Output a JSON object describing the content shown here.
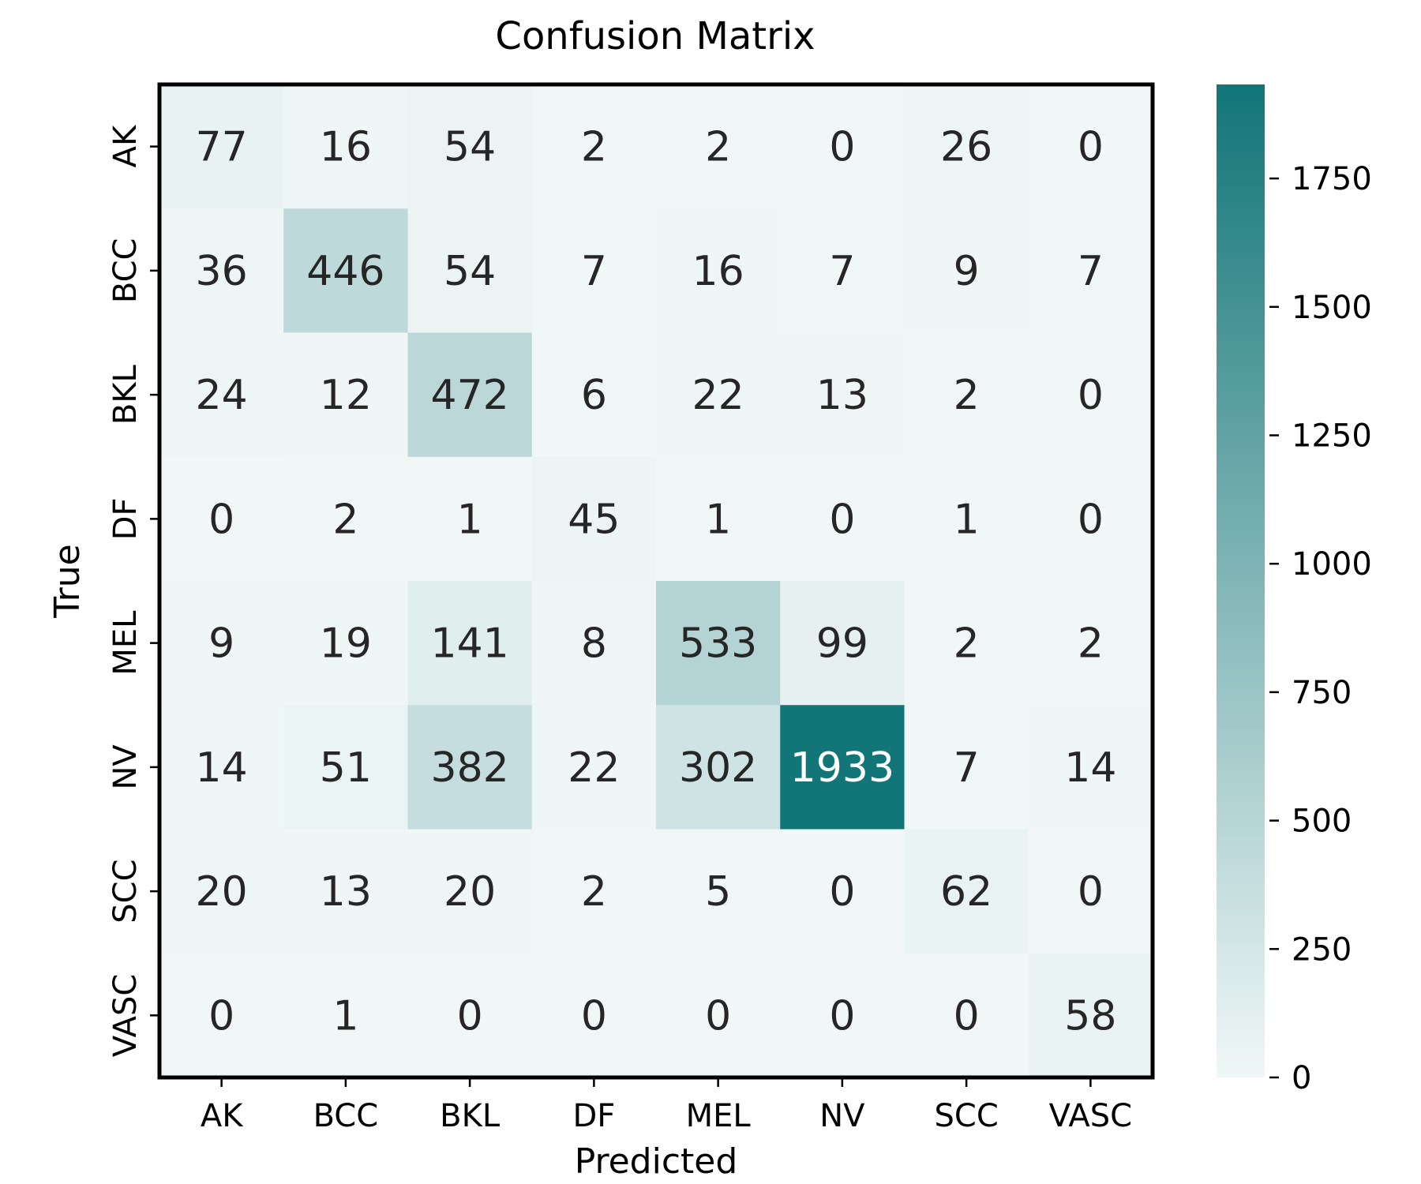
{
  "chart_data": {
    "type": "heatmap",
    "title": "Confusion Matrix",
    "xlabel": "Predicted",
    "ylabel": "True",
    "x_categories": [
      "AK",
      "BCC",
      "BKL",
      "DF",
      "MEL",
      "NV",
      "SCC",
      "VASC"
    ],
    "y_categories": [
      "AK",
      "BCC",
      "BKL",
      "DF",
      "MEL",
      "NV",
      "SCC",
      "VASC"
    ],
    "values": [
      [
        77,
        16,
        54,
        2,
        2,
        0,
        26,
        0
      ],
      [
        36,
        446,
        54,
        7,
        16,
        7,
        9,
        7
      ],
      [
        24,
        12,
        472,
        6,
        22,
        13,
        2,
        0
      ],
      [
        0,
        2,
        1,
        45,
        1,
        0,
        1,
        0
      ],
      [
        9,
        19,
        141,
        8,
        533,
        99,
        2,
        2
      ],
      [
        14,
        51,
        382,
        22,
        302,
        1933,
        7,
        14
      ],
      [
        20,
        13,
        20,
        2,
        5,
        0,
        62,
        0
      ],
      [
        0,
        1,
        0,
        0,
        0,
        0,
        0,
        58
      ]
    ],
    "colorbar": {
      "min": 0,
      "max": 1933,
      "ticks": [
        0,
        250,
        500,
        750,
        1000,
        1250,
        1500,
        1750
      ],
      "low_color": "#f1f7f7",
      "high_color": "#127577"
    },
    "text_dark_color": "#262626",
    "text_light_color": "#ffffff"
  }
}
